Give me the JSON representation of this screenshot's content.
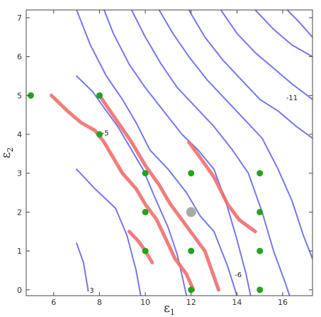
{
  "chart_data": {
    "type": "scatter",
    "xlabel": "ε",
    "xlabel_sub": "1",
    "ylabel": "ε",
    "ylabel_sub": "2",
    "xlim": [
      4.8,
      17.3
    ],
    "ylim": [
      -0.15,
      7.2
    ],
    "xticks": [
      6,
      8,
      10,
      12,
      14,
      16
    ],
    "yticks": [
      0,
      1,
      2,
      3,
      4,
      5,
      6,
      7
    ],
    "grid": false,
    "colors": {
      "contour": "#7777ee",
      "highlight": "#f07070",
      "points": "#22a322",
      "center": "#aaaaaa"
    },
    "contour_lines": [
      [
        [
          7.0,
          1.2
        ],
        [
          7.3,
          0.7
        ],
        [
          7.5,
          0.0
        ]
      ],
      [
        [
          7.0,
          3.1
        ],
        [
          7.8,
          2.6
        ],
        [
          8.7,
          2.1
        ],
        [
          9.2,
          1.4
        ],
        [
          9.6,
          0.5
        ],
        [
          9.8,
          -0.15
        ]
      ],
      [
        [
          7.0,
          5.5
        ],
        [
          7.7,
          5.1
        ],
        [
          8.3,
          4.6
        ],
        [
          8.8,
          4.2
        ],
        [
          9.3,
          3.7
        ],
        [
          9.9,
          3.1
        ],
        [
          10.4,
          2.4
        ],
        [
          11.0,
          1.6
        ],
        [
          11.4,
          0.9
        ],
        [
          11.8,
          -0.15
        ]
      ],
      [
        [
          7.0,
          7.2
        ],
        [
          7.6,
          6.3
        ],
        [
          8.3,
          5.5
        ],
        [
          9.0,
          4.9
        ],
        [
          9.6,
          4.3
        ],
        [
          10.2,
          3.6
        ],
        [
          11.0,
          3.1
        ],
        [
          11.8,
          2.5
        ],
        [
          12.4,
          1.9
        ],
        [
          13.0,
          1.5
        ],
        [
          13.6,
          0.6
        ],
        [
          14.0,
          -0.15
        ]
      ],
      [
        [
          8.2,
          7.2
        ],
        [
          8.6,
          6.6
        ],
        [
          9.3,
          5.8
        ],
        [
          10.0,
          5.2
        ],
        [
          10.8,
          4.6
        ],
        [
          11.6,
          4.0
        ],
        [
          12.3,
          3.6
        ],
        [
          13.0,
          3.1
        ],
        [
          13.5,
          2.3
        ],
        [
          14.0,
          1.3
        ],
        [
          14.4,
          0.4
        ],
        [
          14.6,
          -0.15
        ]
      ],
      [
        [
          9.4,
          7.2
        ],
        [
          10.0,
          6.5
        ],
        [
          10.7,
          5.8
        ],
        [
          11.4,
          5.2
        ],
        [
          12.2,
          4.7
        ],
        [
          13.0,
          4.2
        ],
        [
          13.8,
          3.6
        ],
        [
          14.5,
          3.0
        ],
        [
          15.1,
          2.0
        ],
        [
          15.6,
          1.0
        ],
        [
          16.1,
          0.2
        ],
        [
          16.3,
          -0.15
        ]
      ],
      [
        [
          10.6,
          7.2
        ],
        [
          11.2,
          6.6
        ],
        [
          11.9,
          6.0
        ],
        [
          12.7,
          5.4
        ],
        [
          13.5,
          4.9
        ],
        [
          14.3,
          4.4
        ],
        [
          15.1,
          3.9
        ],
        [
          15.8,
          3.1
        ],
        [
          16.4,
          2.3
        ],
        [
          16.9,
          1.4
        ],
        [
          17.3,
          0.8
        ]
      ],
      [
        [
          11.9,
          7.2
        ],
        [
          12.6,
          6.5
        ],
        [
          13.4,
          5.9
        ],
        [
          14.2,
          5.4
        ],
        [
          15.0,
          4.9
        ],
        [
          15.8,
          4.6
        ],
        [
          16.6,
          4.2
        ],
        [
          17.3,
          3.9
        ]
      ],
      [
        [
          13.3,
          7.2
        ],
        [
          14.0,
          6.6
        ],
        [
          14.8,
          6.1
        ],
        [
          15.6,
          5.7
        ],
        [
          16.4,
          5.3
        ],
        [
          17.3,
          4.9
        ]
      ],
      [
        [
          14.8,
          7.2
        ],
        [
          15.6,
          6.7
        ],
        [
          16.4,
          6.3
        ],
        [
          17.3,
          6.0
        ]
      ],
      [
        [
          16.2,
          7.2
        ],
        [
          16.7,
          6.9
        ],
        [
          17.3,
          6.5
        ]
      ]
    ],
    "highlight_curves": [
      [
        [
          5.9,
          5.0
        ],
        [
          6.6,
          4.6
        ],
        [
          7.2,
          4.3
        ],
        [
          7.8,
          4.1
        ],
        [
          8.2,
          3.8
        ],
        [
          8.6,
          3.4
        ],
        [
          9.0,
          3.0
        ],
        [
          9.6,
          2.6
        ],
        [
          10.0,
          2.2
        ],
        [
          10.5,
          1.8
        ],
        [
          10.9,
          1.3
        ],
        [
          11.3,
          0.8
        ],
        [
          11.8,
          0.4
        ],
        [
          12.1,
          0.0
        ]
      ],
      [
        [
          8.0,
          5.0
        ],
        [
          8.7,
          4.4
        ],
        [
          9.4,
          3.8
        ],
        [
          10.0,
          3.2
        ],
        [
          10.6,
          2.7
        ],
        [
          11.1,
          2.2
        ],
        [
          11.6,
          1.8
        ],
        [
          12.1,
          1.4
        ],
        [
          12.6,
          1.0
        ],
        [
          12.9,
          0.5
        ],
        [
          13.2,
          0.0
        ]
      ],
      [
        [
          9.3,
          1.5
        ],
        [
          9.7,
          1.25
        ],
        [
          10.0,
          1.0
        ],
        [
          10.3,
          0.7
        ]
      ],
      [
        [
          11.9,
          3.8
        ],
        [
          12.4,
          3.4
        ],
        [
          13.0,
          2.9
        ],
        [
          13.6,
          2.2
        ],
        [
          14.1,
          1.8
        ],
        [
          14.8,
          1.5
        ]
      ]
    ],
    "points": [
      {
        "x": 5.0,
        "y": 5.0
      },
      {
        "x": 8.0,
        "y": 5.0
      },
      {
        "x": 8.0,
        "y": 4.0
      },
      {
        "x": 10.0,
        "y": 3.0
      },
      {
        "x": 12.0,
        "y": 3.0
      },
      {
        "x": 15.0,
        "y": 3.0
      },
      {
        "x": 10.0,
        "y": 2.0
      },
      {
        "x": 15.0,
        "y": 2.0
      },
      {
        "x": 10.0,
        "y": 1.0
      },
      {
        "x": 12.0,
        "y": 1.0
      },
      {
        "x": 15.0,
        "y": 1.0
      },
      {
        "x": 12.0,
        "y": 0.0
      },
      {
        "x": 15.0,
        "y": 0.0
      }
    ],
    "center_point": {
      "x": 12.0,
      "y": 2.0
    },
    "contour_labels": [
      {
        "text": "-3",
        "x": 7.45,
        "y": 0.0
      },
      {
        "text": "-5",
        "x": 8.1,
        "y": 4.05
      },
      {
        "text": "-6",
        "x": 13.9,
        "y": 0.4
      },
      {
        "text": "-11",
        "x": 16.15,
        "y": 4.95
      }
    ]
  }
}
